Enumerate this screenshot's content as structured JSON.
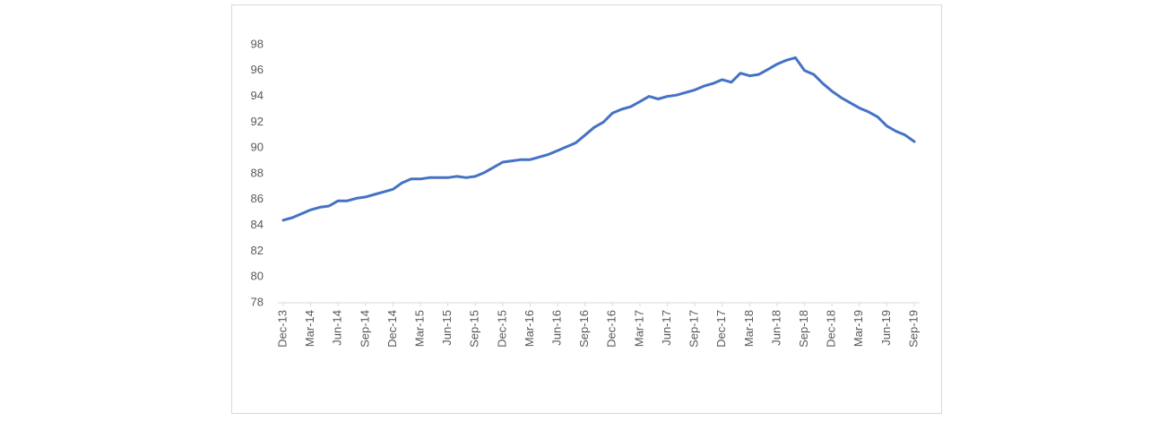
{
  "chart_data": {
    "type": "line",
    "categories": [
      "Dec-13",
      null,
      null,
      "Mar-14",
      null,
      null,
      "Jun-14",
      null,
      null,
      "Sep-14",
      null,
      null,
      "Dec-14",
      null,
      null,
      "Mar-15",
      null,
      null,
      "Jun-15",
      null,
      null,
      "Sep-15",
      null,
      null,
      "Dec-15",
      null,
      null,
      "Mar-16",
      null,
      null,
      "Jun-16",
      null,
      null,
      "Sep-16",
      null,
      null,
      "Dec-16",
      null,
      null,
      "Mar-17",
      null,
      null,
      "Jun-17",
      null,
      null,
      "Sep-17",
      null,
      null,
      "Dec-17",
      null,
      null,
      "Mar-18",
      null,
      null,
      "Jun-18",
      null,
      null,
      "Sep-18",
      null,
      null,
      "Dec-18",
      null,
      null,
      "Mar-19",
      null,
      null,
      "Jun-19",
      null,
      null,
      "Sep-19"
    ],
    "values": [
      84.4,
      84.6,
      84.9,
      85.2,
      85.4,
      85.5,
      85.9,
      85.9,
      86.1,
      86.2,
      86.4,
      86.6,
      86.8,
      87.3,
      87.6,
      87.6,
      87.7,
      87.7,
      87.7,
      87.8,
      87.7,
      87.8,
      88.1,
      88.5,
      88.9,
      89.0,
      89.1,
      89.1,
      89.3,
      89.5,
      89.8,
      90.1,
      90.4,
      91.0,
      91.6,
      92.0,
      92.7,
      93.0,
      93.2,
      93.6,
      94.0,
      93.8,
      94.0,
      94.1,
      94.3,
      94.5,
      94.8,
      95.0,
      95.3,
      95.1,
      95.8,
      95.6,
      95.7,
      96.1,
      96.5,
      96.8,
      97.0,
      96.0,
      95.7,
      95.0,
      94.4,
      93.9,
      93.5,
      93.1,
      92.8,
      92.4,
      91.7,
      91.3,
      91.0,
      90.5
    ],
    "color": "#4472c4",
    "ylim": [
      78,
      98
    ],
    "yticks": [
      78,
      80,
      82,
      84,
      86,
      88,
      90,
      92,
      94,
      96,
      98
    ],
    "grid": false
  }
}
